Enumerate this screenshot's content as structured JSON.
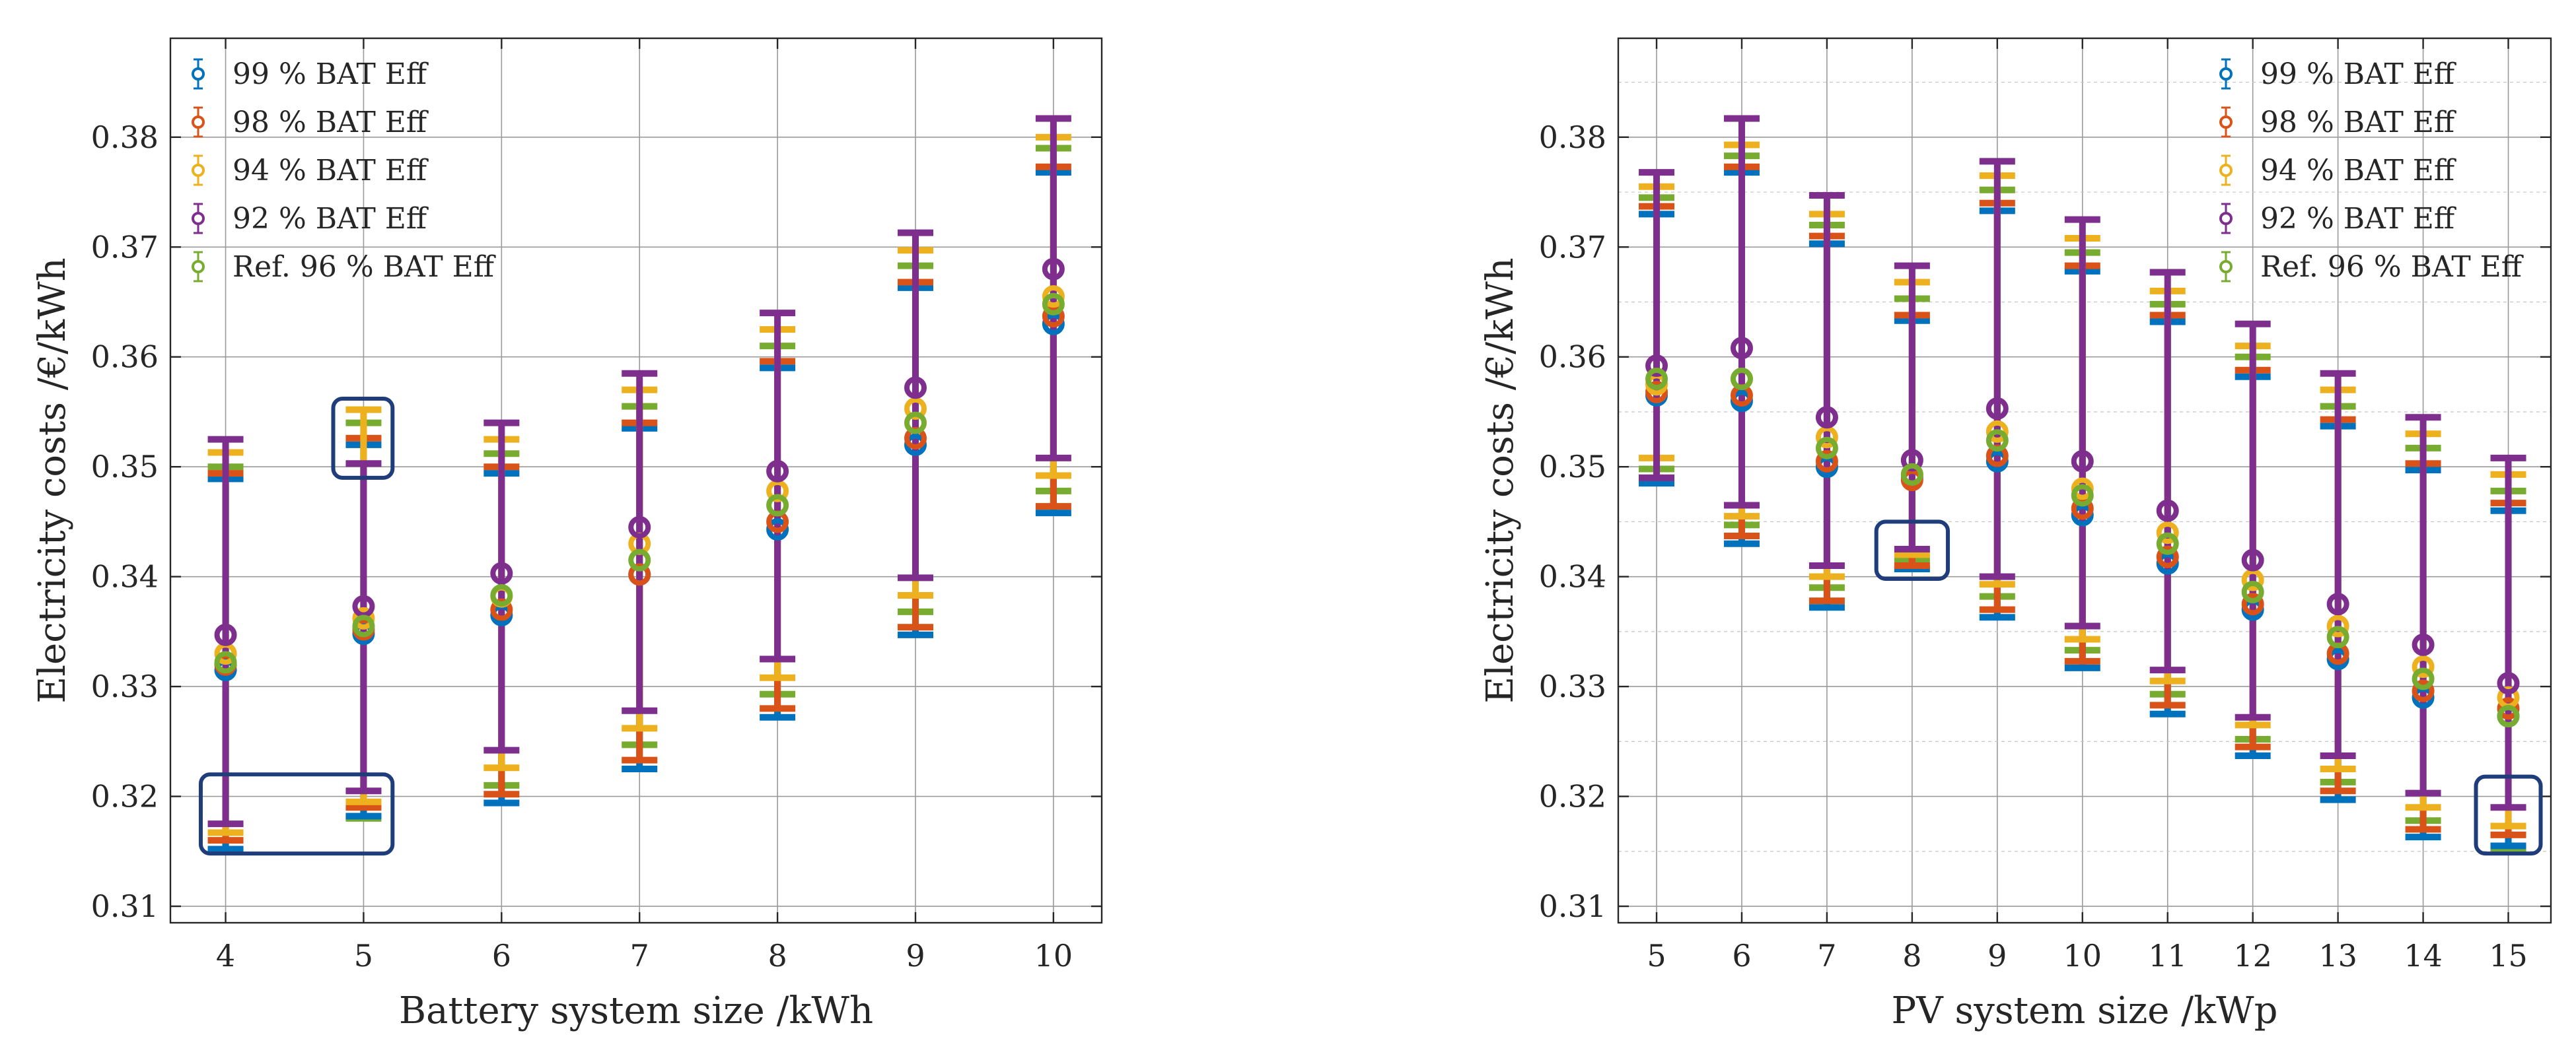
{
  "colors": {
    "s99": "#0072BD",
    "s98": "#D95319",
    "s94": "#EDB120",
    "s92": "#7E2F8E",
    "ref": "#77AC30",
    "highlight": "#1F3D7A"
  },
  "chart_data": [
    {
      "type": "errorbar",
      "xlabel": "Battery system size /kWh",
      "ylabel": "Electricity costs /€/kWh",
      "xlim": [
        3.6,
        10.35
      ],
      "ylim": [
        0.3085,
        0.389
      ],
      "categories": [
        "4",
        "5",
        "6",
        "7",
        "8",
        "9",
        "10"
      ],
      "x": [
        4,
        5,
        6,
        7,
        8,
        9,
        10
      ],
      "yticks": [
        "0.31",
        "0.32",
        "0.33",
        "0.34",
        "0.35",
        "0.36",
        "0.37",
        "0.38"
      ],
      "ytick_values": [
        0.31,
        0.32,
        0.33,
        0.34,
        0.35,
        0.36,
        0.37,
        0.38
      ],
      "legend_position": "top-left",
      "series": [
        {
          "name": "99 % BAT Eff",
          "color_key": "s99",
          "values": [
            0.3315,
            0.3348,
            0.3365,
            0.3402,
            0.3443,
            0.352,
            0.363
          ],
          "lower": [
            0.3152,
            0.3182,
            0.3194,
            0.3225,
            0.3272,
            0.3347,
            0.3458
          ],
          "upper": [
            0.3489,
            0.352,
            0.3494,
            0.3535,
            0.359,
            0.3663,
            0.3768
          ]
        },
        {
          "name": "98 % BAT Eff",
          "color_key": "s98",
          "values": [
            0.332,
            0.3352,
            0.337,
            0.3402,
            0.345,
            0.3526,
            0.3637
          ],
          "lower": [
            0.316,
            0.319,
            0.3202,
            0.3233,
            0.328,
            0.3354,
            0.3464
          ],
          "upper": [
            0.3494,
            0.3526,
            0.35,
            0.354,
            0.3596,
            0.3668,
            0.3773
          ]
        },
        {
          "name": "94 % BAT Eff",
          "color_key": "s94",
          "values": [
            0.333,
            0.3362,
            0.3382,
            0.343,
            0.3478,
            0.3553,
            0.3655
          ],
          "lower": [
            0.3167,
            0.3195,
            0.3226,
            0.3262,
            0.3308,
            0.3383,
            0.3492
          ],
          "upper": [
            0.3513,
            0.3552,
            0.3525,
            0.357,
            0.3625,
            0.3697,
            0.38
          ]
        },
        {
          "name": "92 % BAT Eff",
          "color_key": "s92",
          "values": [
            0.3347,
            0.3373,
            0.3403,
            0.3445,
            0.3496,
            0.3572,
            0.368
          ],
          "lower": [
            0.3175,
            0.3205,
            0.3242,
            0.3278,
            0.3325,
            0.3399,
            0.3508
          ],
          "upper": [
            0.3525,
            0.3503,
            0.354,
            0.3585,
            0.364,
            0.3713,
            0.3817
          ]
        },
        {
          "name": "Ref. 96 % BAT Eff",
          "color_key": "ref",
          "values": [
            0.3322,
            0.3355,
            0.3383,
            0.3415,
            0.3465,
            0.354,
            0.3648
          ],
          "lower": [
            0.315,
            0.318,
            0.321,
            0.3247,
            0.3293,
            0.3368,
            0.3478
          ],
          "upper": [
            0.35,
            0.354,
            0.3512,
            0.3555,
            0.361,
            0.3683,
            0.379
          ]
        }
      ],
      "highlights": [
        {
          "x_from": 3.82,
          "x_to": 5.21,
          "y_from": 0.3148,
          "y_to": 0.322
        },
        {
          "x_from": 4.78,
          "x_to": 5.21,
          "y_from": 0.349,
          "y_to": 0.3562
        }
      ]
    },
    {
      "type": "errorbar",
      "xlabel": "PV system size /kWp",
      "ylabel": "Electricity costs /€/kWh",
      "xlim": [
        4.55,
        15.5
      ],
      "ylim": [
        0.3085,
        0.389
      ],
      "categories": [
        "5",
        "6",
        "7",
        "8",
        "9",
        "10",
        "11",
        "12",
        "13",
        "14",
        "15"
      ],
      "x": [
        5,
        6,
        7,
        8,
        9,
        10,
        11,
        12,
        13,
        14,
        15
      ],
      "yticks": [
        "0.31",
        "0.32",
        "0.33",
        "0.34",
        "0.35",
        "0.36",
        "0.37",
        "0.38"
      ],
      "ytick_values": [
        0.31,
        0.32,
        0.33,
        0.34,
        0.35,
        0.36,
        0.37,
        0.38
      ],
      "legend_position": "top-right",
      "series": [
        {
          "name": "99 % BAT Eff",
          "color_key": "s99",
          "values": [
            0.3565,
            0.356,
            0.35,
            0.349,
            0.3505,
            0.3456,
            0.3412,
            0.337,
            0.3325,
            0.329,
            0.3273
          ],
          "lower": [
            0.3485,
            0.343,
            0.3372,
            0.3407,
            0.3363,
            0.3317,
            0.3275,
            0.3237,
            0.3197,
            0.3163,
            0.3155
          ],
          "upper": [
            0.373,
            0.3768,
            0.3703,
            0.3633,
            0.3733,
            0.3678,
            0.3632,
            0.3582,
            0.3537,
            0.3497,
            0.346
          ]
        },
        {
          "name": "98 % BAT Eff",
          "color_key": "s98",
          "values": [
            0.3568,
            0.3565,
            0.3505,
            0.3488,
            0.351,
            0.3462,
            0.3418,
            0.3375,
            0.333,
            0.3296,
            0.328
          ],
          "lower": [
            0.349,
            0.3437,
            0.3378,
            0.341,
            0.337,
            0.3323,
            0.3283,
            0.3245,
            0.3205,
            0.317,
            0.3165
          ],
          "upper": [
            0.3737,
            0.3773,
            0.371,
            0.3638,
            0.374,
            0.3683,
            0.3638,
            0.3588,
            0.3543,
            0.3503,
            0.3467
          ]
        },
        {
          "name": "94 % BAT Eff",
          "color_key": "s94",
          "values": [
            0.3575,
            0.358,
            0.3527,
            0.3493,
            0.3532,
            0.348,
            0.344,
            0.3397,
            0.3355,
            0.3318,
            0.329
          ],
          "lower": [
            0.3508,
            0.3455,
            0.34,
            0.342,
            0.3393,
            0.3343,
            0.3305,
            0.3265,
            0.3225,
            0.319,
            0.3173
          ],
          "upper": [
            0.3755,
            0.3793,
            0.373,
            0.3668,
            0.3765,
            0.3708,
            0.366,
            0.361,
            0.357,
            0.353,
            0.3493
          ]
        },
        {
          "name": "92 % BAT Eff",
          "color_key": "s92",
          "values": [
            0.3592,
            0.3608,
            0.3545,
            0.3506,
            0.3553,
            0.3505,
            0.346,
            0.3415,
            0.3375,
            0.3338,
            0.3303
          ],
          "lower": [
            0.349,
            0.3465,
            0.341,
            0.3425,
            0.34,
            0.3355,
            0.3315,
            0.3272,
            0.3237,
            0.3203,
            0.319
          ],
          "upper": [
            0.3768,
            0.3817,
            0.3747,
            0.3683,
            0.3778,
            0.3725,
            0.3677,
            0.363,
            0.3585,
            0.3545,
            0.3508
          ]
        },
        {
          "name": "Ref. 96 % BAT Eff",
          "color_key": "ref",
          "values": [
            0.358,
            0.358,
            0.3517,
            0.3493,
            0.3524,
            0.3474,
            0.343,
            0.3386,
            0.3345,
            0.3307,
            0.3273
          ],
          "lower": [
            0.3498,
            0.3447,
            0.339,
            0.3415,
            0.3382,
            0.3333,
            0.3293,
            0.3252,
            0.3213,
            0.3178,
            0.3152
          ],
          "upper": [
            0.3745,
            0.3783,
            0.372,
            0.3653,
            0.3752,
            0.3695,
            0.3648,
            0.36,
            0.3555,
            0.3517,
            0.3478
          ]
        }
      ],
      "highlights": [
        {
          "x_from": 7.58,
          "x_to": 8.42,
          "y_from": 0.3398,
          "y_to": 0.345
        },
        {
          "x_from": 14.62,
          "x_to": 15.38,
          "y_from": 0.3148,
          "y_to": 0.3218
        }
      ]
    }
  ]
}
